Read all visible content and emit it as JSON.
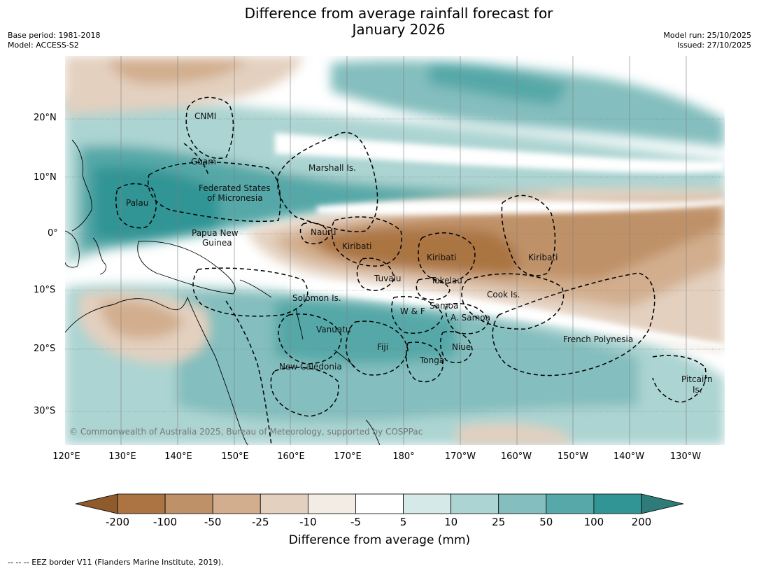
{
  "title_line1": "Difference from average rainfall forecast for",
  "title_line2": "January 2026",
  "meta_left": [
    "Base period: 1981-2018",
    "Model: ACCESS-S2"
  ],
  "meta_right": [
    "Model run: 25/10/2025",
    "Issued: 27/10/2025"
  ],
  "lat_labels": [
    "20°N",
    "10°N",
    "0°",
    "10°S",
    "20°S",
    "30°S"
  ],
  "lon_labels": [
    "120°E",
    "130°E",
    "140°E",
    "150°E",
    "160°E",
    "170°E",
    "180°",
    "170°W",
    "160°W",
    "150°W",
    "140°W",
    "130°W"
  ],
  "region_labels": [
    "CNMI",
    "Guam",
    "Marshall Is.",
    "Federated States",
    "of Micronesia",
    "Palau",
    "Nauru",
    "Papua New",
    "Guinea",
    "Kiribati",
    "Kiribati",
    "Kiribati",
    "Tuvalu",
    "Tokelau",
    "Cook Is.",
    "Solomon Is.",
    "W & F",
    "Samoa",
    "A. Samoa",
    "Vanuatu",
    "Fiji",
    "Niue",
    "Tonga",
    "French Polynesia",
    "New Caledonia",
    "Pitcairn",
    "Is."
  ],
  "copyright": "© Commonwealth of Australia 2025, Bureau of Meteorology, supported by COSPPac",
  "colorbar": {
    "ticks": [
      "-200",
      "-100",
      "-50",
      "-25",
      "-10",
      "-5",
      "5",
      "10",
      "25",
      "50",
      "100",
      "200"
    ],
    "colors": [
      "#8f5a2c",
      "#ab7442",
      "#bf9168",
      "#d2ae8e",
      "#e3d0bf",
      "#f2ece4",
      "#ffffff",
      "#d5eae8",
      "#acd4d2",
      "#84bebe",
      "#57a8a8",
      "#329595",
      "#2e7b7a"
    ],
    "title": "Difference from average (mm)"
  },
  "footnote": "--  --  -- EEZ border V11 (Flanders Marine Institute, 2019)."
}
